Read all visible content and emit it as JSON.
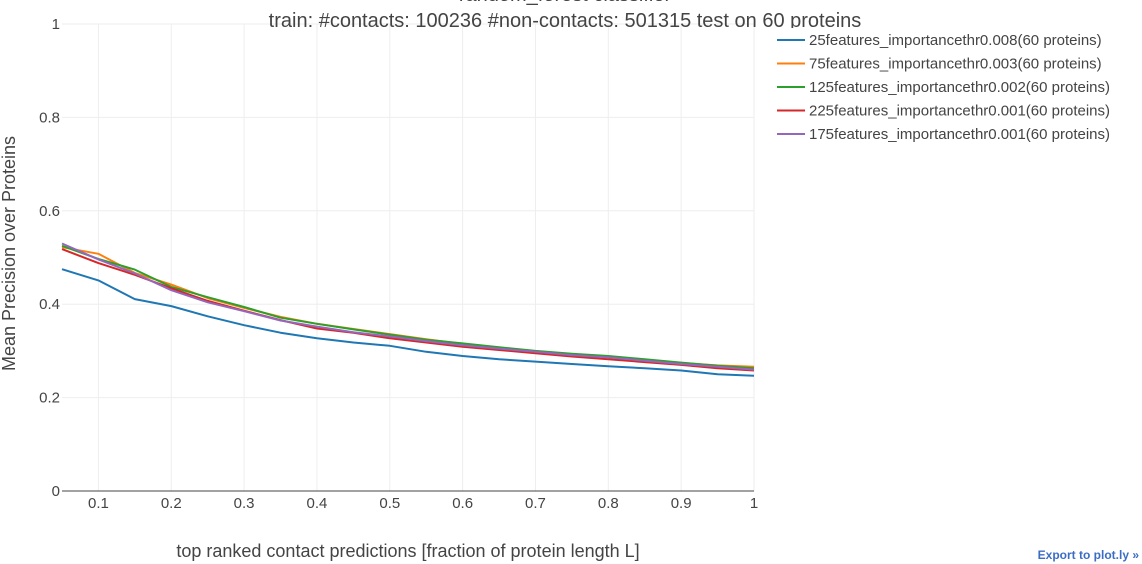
{
  "chart_data": {
    "type": "line",
    "title_lines": [
      "random_forest classifier",
      "train: #contacts: 100236 #non-contacts: 501315 test on 60 proteins"
    ],
    "xlabel": "top ranked contact predictions [fraction of protein length L]",
    "ylabel": "Mean Precision over Proteins",
    "xlim": [
      0.05,
      1.0
    ],
    "ylim": [
      0,
      1
    ],
    "x_ticks": [
      0.1,
      0.2,
      0.3,
      0.4,
      0.5,
      0.6,
      0.7,
      0.8,
      0.9,
      1
    ],
    "x_tick_labels": [
      "0.1",
      "0.2",
      "0.3",
      "0.4",
      "0.5",
      "0.6",
      "0.7",
      "0.8",
      "0.9",
      "1"
    ],
    "y_ticks": [
      0,
      0.2,
      0.4,
      0.6,
      0.8,
      1
    ],
    "y_tick_labels": [
      "0",
      "0.2",
      "0.4",
      "0.6",
      "0.8",
      "1"
    ],
    "grid": true,
    "legend_position": "top-right",
    "x": [
      0.05,
      0.1,
      0.15,
      0.2,
      0.25,
      0.3,
      0.35,
      0.4,
      0.45,
      0.5,
      0.55,
      0.6,
      0.65,
      0.7,
      0.75,
      0.8,
      0.85,
      0.9,
      0.95,
      1.0
    ],
    "series": [
      {
        "name": "25features_importancethr0.008(60 proteins)",
        "color": "#1f77b4",
        "values": [
          0.475,
          0.451,
          0.411,
          0.396,
          0.374,
          0.355,
          0.339,
          0.327,
          0.318,
          0.311,
          0.298,
          0.289,
          0.282,
          0.277,
          0.272,
          0.267,
          0.263,
          0.258,
          0.25,
          0.247
        ]
      },
      {
        "name": "75features_importancethr0.003(60 proteins)",
        "color": "#ff7f0e",
        "values": [
          0.522,
          0.508,
          0.467,
          0.442,
          0.413,
          0.392,
          0.373,
          0.358,
          0.347,
          0.336,
          0.325,
          0.315,
          0.307,
          0.299,
          0.292,
          0.287,
          0.28,
          0.274,
          0.269,
          0.266
        ]
      },
      {
        "name": "125features_importancethr0.002(60 proteins)",
        "color": "#2ca02c",
        "values": [
          0.525,
          0.497,
          0.474,
          0.437,
          0.415,
          0.394,
          0.371,
          0.358,
          0.346,
          0.335,
          0.324,
          0.316,
          0.308,
          0.3,
          0.294,
          0.289,
          0.282,
          0.275,
          0.268,
          0.263
        ]
      },
      {
        "name": "225features_importancethr0.001(60 proteins)",
        "color": "#d62728",
        "values": [
          0.518,
          0.488,
          0.463,
          0.434,
          0.407,
          0.386,
          0.366,
          0.348,
          0.339,
          0.327,
          0.318,
          0.309,
          0.302,
          0.295,
          0.288,
          0.282,
          0.276,
          0.27,
          0.263,
          0.258
        ]
      },
      {
        "name": "175features_importancethr0.001(60 proteins)",
        "color": "#9467bd",
        "values": [
          0.53,
          0.496,
          0.466,
          0.43,
          0.404,
          0.385,
          0.365,
          0.352,
          0.34,
          0.331,
          0.321,
          0.312,
          0.305,
          0.298,
          0.291,
          0.286,
          0.279,
          0.272,
          0.266,
          0.26
        ]
      }
    ]
  },
  "export_label": "Export to plot.ly »"
}
